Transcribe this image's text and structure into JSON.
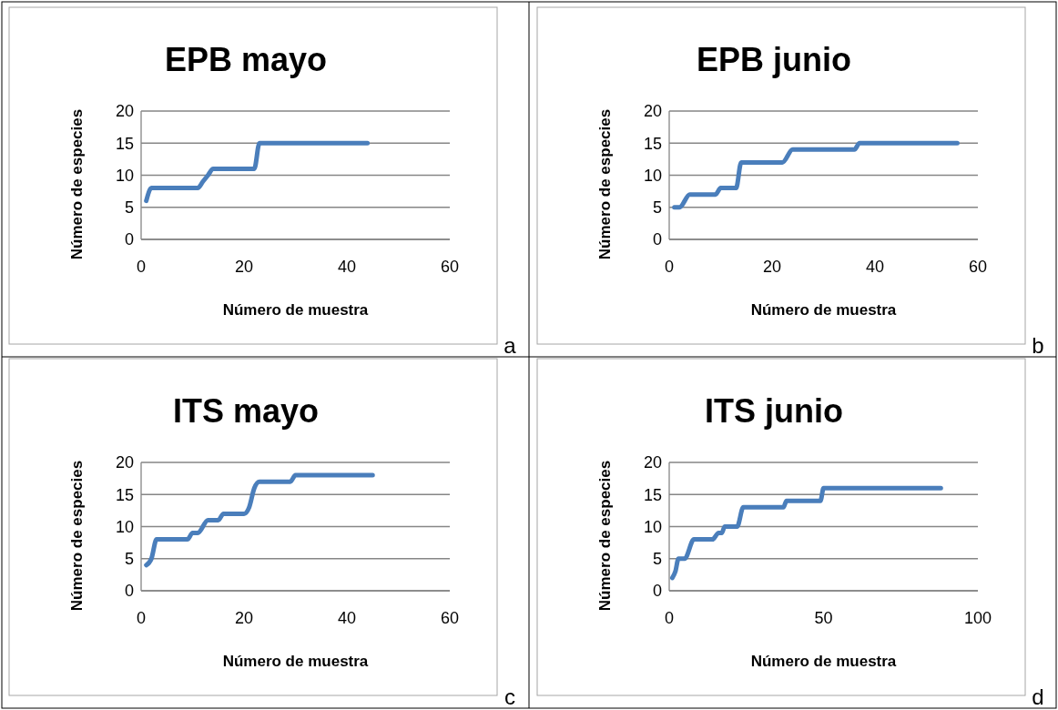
{
  "chart_data": [
    {
      "type": "line",
      "title": "EPB mayo",
      "xlabel": "Número de muestra",
      "ylabel": "Número de especies",
      "xlim": [
        0,
        60
      ],
      "xticks": [
        0,
        20,
        40,
        60
      ],
      "ylim": [
        0,
        20
      ],
      "yticks": [
        0,
        5,
        10,
        15,
        20
      ],
      "grid": "y",
      "annotations": [
        "a"
      ],
      "series": [
        {
          "color": "#4a7ebb",
          "x": [
            1,
            2,
            11,
            12,
            13,
            14,
            22,
            23,
            44
          ],
          "values": [
            6,
            8,
            8,
            9,
            10,
            11,
            11,
            15,
            15
          ]
        }
      ]
    },
    {
      "type": "line",
      "title": "EPB junio",
      "xlabel": "Número de muestra",
      "ylabel": "Número de especies",
      "xlim": [
        0,
        60
      ],
      "xticks": [
        0,
        20,
        40,
        60
      ],
      "ylim": [
        0,
        20
      ],
      "yticks": [
        0,
        5,
        10,
        15,
        20
      ],
      "grid": "y",
      "annotations": [
        "b"
      ],
      "series": [
        {
          "color": "#4a7ebb",
          "x": [
            1,
            2,
            4,
            9,
            10,
            13,
            14,
            22,
            24,
            36,
            37,
            56
          ],
          "values": [
            5,
            5,
            7,
            7,
            8,
            8,
            12,
            12,
            14,
            14,
            15,
            15
          ]
        }
      ]
    },
    {
      "type": "line",
      "title": "ITS mayo",
      "xlabel": "Número de muestra",
      "ylabel": "Número de especies",
      "xlim": [
        0,
        60
      ],
      "xticks": [
        0,
        20,
        40,
        60
      ],
      "ylim": [
        0,
        20
      ],
      "yticks": [
        0,
        5,
        10,
        15,
        20
      ],
      "grid": "y",
      "annotations": [
        "c"
      ],
      "series": [
        {
          "color": "#4a7ebb",
          "x": [
            1,
            2,
            3,
            9,
            10,
            11,
            13,
            15,
            16,
            20,
            21,
            22,
            23,
            29,
            30,
            45
          ],
          "values": [
            4,
            5,
            8,
            8,
            9,
            9,
            11,
            11,
            12,
            12,
            13,
            16,
            17,
            17,
            18,
            18
          ]
        }
      ]
    },
    {
      "type": "line",
      "title": "ITS junio",
      "xlabel": "Número de muestra",
      "ylabel": "Número de especies",
      "xlim": [
        0,
        100
      ],
      "xticks": [
        0,
        50,
        100
      ],
      "ylim": [
        0,
        20
      ],
      "yticks": [
        0,
        5,
        10,
        15,
        20
      ],
      "grid": "y",
      "annotations": [
        "d"
      ],
      "series": [
        {
          "color": "#4a7ebb",
          "x": [
            1,
            2,
            3,
            5,
            8,
            14,
            16,
            17,
            18,
            22,
            24,
            37,
            38,
            49,
            50,
            88
          ],
          "values": [
            2,
            3,
            5,
            5,
            8,
            8,
            9,
            9,
            10,
            10,
            13,
            13,
            14,
            14,
            16,
            16
          ]
        }
      ]
    }
  ]
}
